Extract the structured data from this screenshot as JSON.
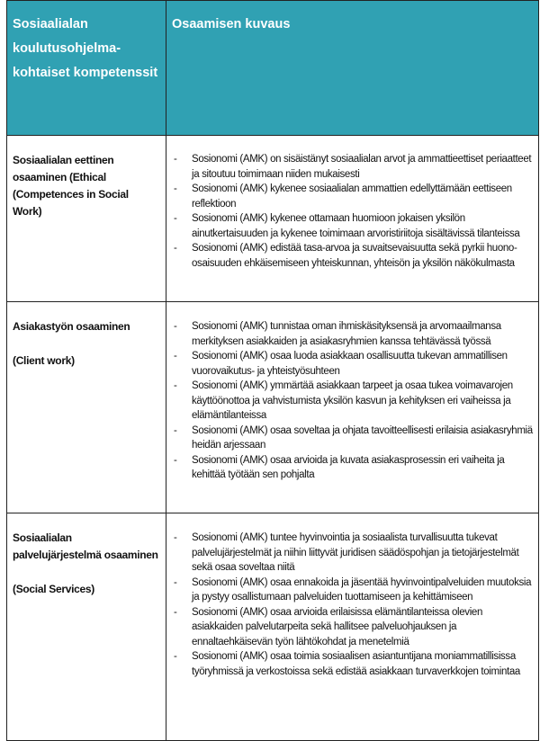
{
  "header": {
    "col1": "Sosiaalialan koulutusohjelma-kohtaiset kompetenssit",
    "col2": "Osaamisen kuvaus"
  },
  "rows": [
    {
      "competence": "Sosiaalialan eettinen osaaminen (Ethical",
      "english": "(Competences in Social Work)",
      "items": [
        "Sosionomi (AMK) on sisäistänyt sosiaalialan arvot ja ammattieettiset periaatteet ja sitoutuu toimimaan niiden mukaisesti",
        "Sosionomi (AMK) kykenee sosiaalialan ammattien edellyttämään eettiseen reflektioon",
        "Sosionomi (AMK) kykenee ottamaan huomioon jokaisen yksilön ainutkertaisuuden ja kykenee toimimaan arvoristiriitoja sisältävissä tilanteissa",
        "Sosionomi (AMK) edistää tasa-arvoa ja suvaitsevaisuutta sekä pyrkii huono-osaisuuden ehkäisemiseen yhteiskunnan, yhteisön ja yksilön näkökulmasta"
      ]
    },
    {
      "competence": "Asiakastyön osaaminen",
      "english": "(Client work)",
      "items": [
        "Sosionomi (AMK) tunnistaa oman ihmiskäsityksensä ja arvomaailmansa merkityksen asiakkaiden ja asiakasryhmien kanssa tehtävässä työssä",
        "Sosionomi (AMK) osaa luoda asiakkaan osallisuutta tukevan ammatillisen vuorovaikutus- ja yhteistyösuhteen",
        "Sosionomi (AMK) ymmärtää asiakkaan tarpeet ja osaa tukea voimavarojen käyttöönottoa ja vahvistumista yksilön kasvun ja kehityksen eri vaiheissa ja elämäntilanteissa",
        "Sosionomi (AMK) osaa soveltaa ja ohjata tavoitteellisesti erilaisia asiakasryhmiä heidän arjessaan",
        "Sosionomi (AMK) osaa arvioida ja kuvata asiakasprosessin eri vaiheita ja kehittää työtään sen pohjalta"
      ]
    },
    {
      "competence": "Sosiaalialan palvelujärjestelmä osaaminen",
      "english": "(Social Services)",
      "items": [
        "Sosionomi (AMK) tuntee hyvinvointia ja sosiaalista turvallisuutta tukevat palvelujärjestelmät ja niihin liittyvät juridisen säädöspohjan ja tietojärjestelmät sekä osaa soveltaa niitä",
        "Sosionomi (AMK) osaa ennakoida ja jäsentää hyvinvointipalveluiden muutoksia ja pystyy osallistumaan palveluiden tuottamiseen ja kehittämiseen",
        "Sosionomi (AMK) osaa arvioida erilaisissa elämäntilanteissa olevien asiakkaiden palvelutarpeita sekä hallitsee palveluohjauksen ja ennaltaehkäisevän työn lähtökohdat ja menetelmiä",
        "Sosionomi (AMK) osaa toimia sosiaalisen asiantuntijana moniammatillisissa työryhmissä ja verkostoissa sekä edistää asiakkaan turvaverkkojen toimintaa"
      ]
    }
  ],
  "colors": {
    "header_bg": "#30a1b3",
    "header_text": "#ffffff",
    "border": "#222222"
  }
}
